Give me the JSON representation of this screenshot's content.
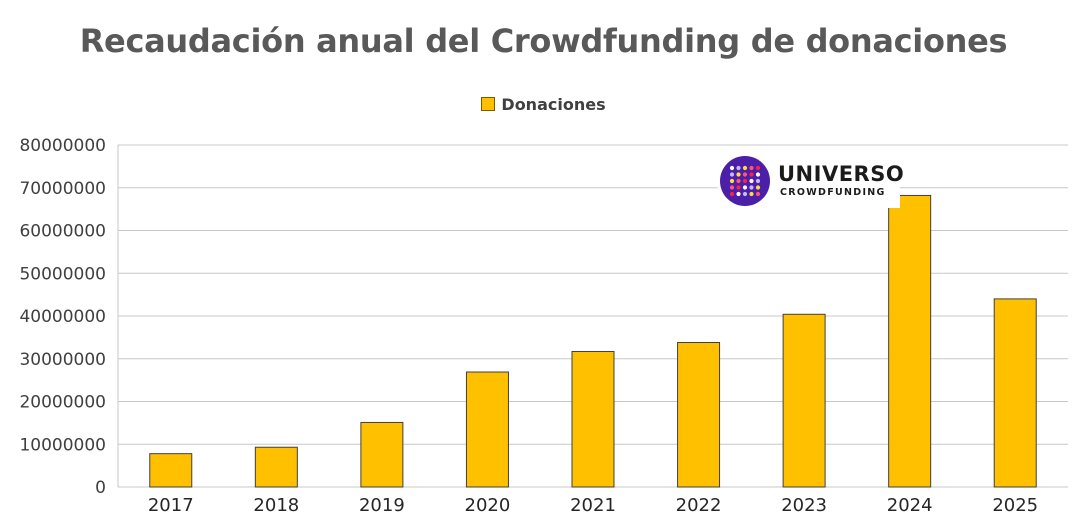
{
  "chart_data": {
    "type": "bar",
    "title": "Recaudación anual del Crowdfunding de donaciones",
    "categories": [
      "2017",
      "2018",
      "2019",
      "2020",
      "2021",
      "2022",
      "2023",
      "2024",
      "2025"
    ],
    "series": [
      {
        "name": "Donaciones",
        "values": [
          7800000,
          9300000,
          15100000,
          26900000,
          31700000,
          33800000,
          40400000,
          68200000,
          44000000
        ]
      }
    ],
    "yticks": [
      "0",
      "10000000",
      "20000000",
      "30000000",
      "40000000",
      "50000000",
      "60000000",
      "70000000",
      "80000000"
    ],
    "ylim": [
      0,
      80000000
    ],
    "grid": true,
    "legend_position": "top-center",
    "bar_color": "#FFC000",
    "bar_border": "#3f3f3f"
  },
  "logo": {
    "name": "UNIVERSO",
    "tagline": "CROWDFUNDING",
    "icon": "dotted-circle-logo-icon",
    "color": "#4b1fa8"
  }
}
